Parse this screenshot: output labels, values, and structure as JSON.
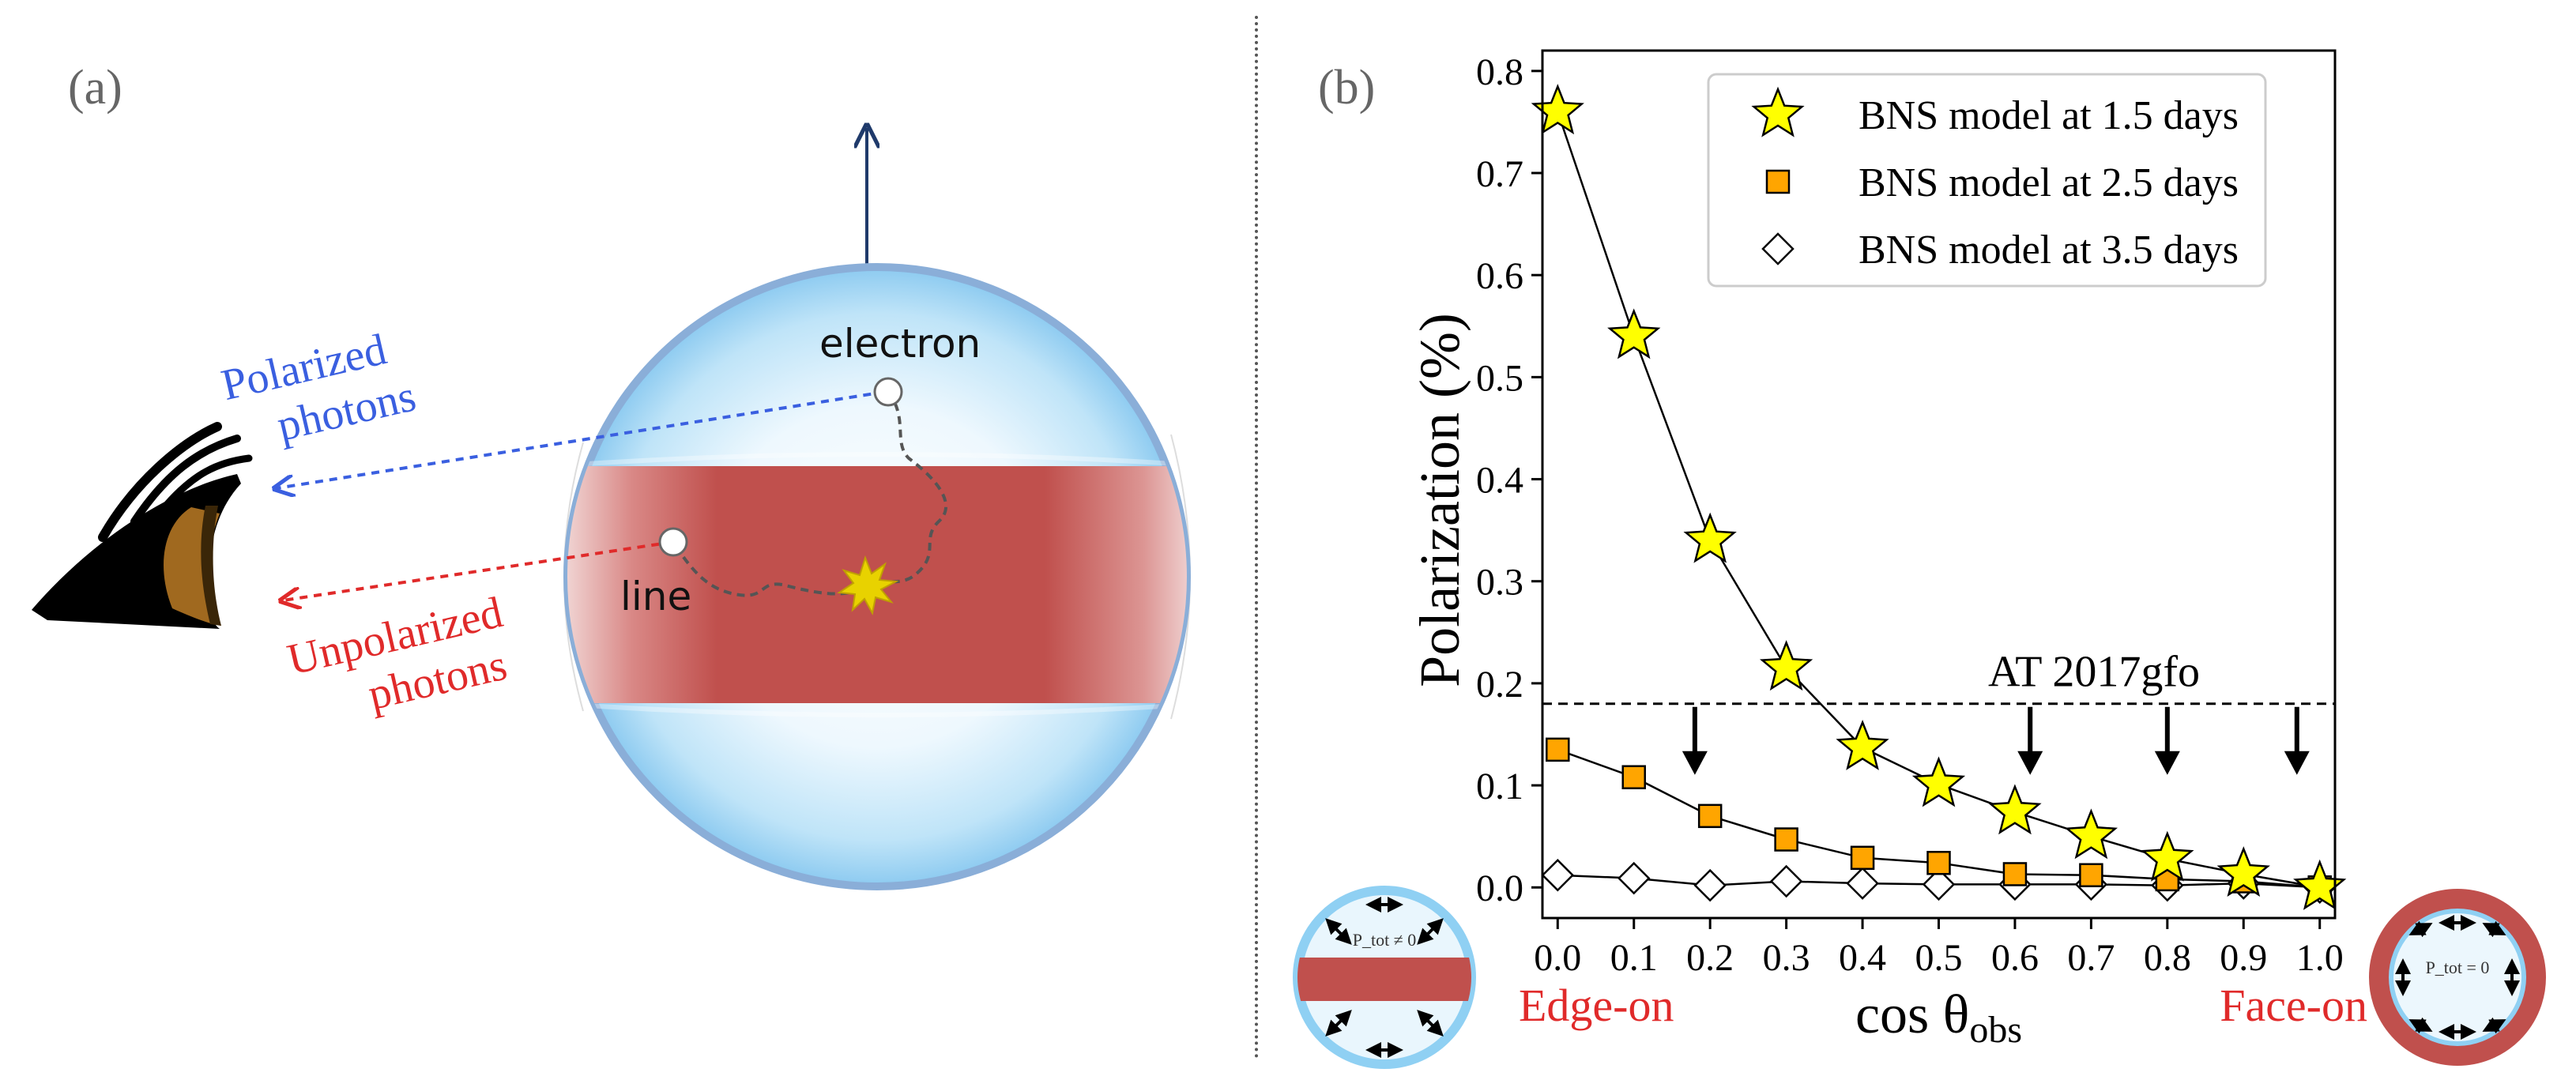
{
  "panel_a": {
    "label": "(a)",
    "electron_label": "electron",
    "line_label": "line",
    "polarized_label_1": "Polarized",
    "polarized_label_2": "photons",
    "unpolarized_label_1": "Unpolarized",
    "unpolarized_label_2": "photons",
    "colors": {
      "polarized": "#3a5fe0",
      "unpolarized": "#e02a2a",
      "band": "#c0504d",
      "sphere": "#a8d8f4"
    }
  },
  "panel_b": {
    "label": "(b)",
    "edge_on_label": "Edge-on",
    "face_on_label": "Face-on",
    "edge_inset_text": "P_tot ≠ 0",
    "face_inset_text": "P_tot = 0",
    "annotation_color": "#e02a2a"
  },
  "chart_data": {
    "type": "line",
    "xlabel_main": "cos θ",
    "xlabel_sub": "obs",
    "ylabel": "Polarization (%)",
    "xlim": [
      -0.02,
      1.02
    ],
    "ylim": [
      -0.03,
      0.82
    ],
    "x_ticks": [
      "0.0",
      "0.1",
      "0.2",
      "0.3",
      "0.4",
      "0.5",
      "0.6",
      "0.7",
      "0.8",
      "0.9",
      "1.0"
    ],
    "y_ticks": [
      "0.0",
      "0.1",
      "0.2",
      "0.3",
      "0.4",
      "0.5",
      "0.6",
      "0.7",
      "0.8"
    ],
    "legend_position": "top-right",
    "series": [
      {
        "name": "BNS model at 1.5 days",
        "marker": "star",
        "color": "#ffff00",
        "x": [
          0.0,
          0.1,
          0.2,
          0.3,
          0.4,
          0.5,
          0.6,
          0.7,
          0.8,
          0.9,
          1.0
        ],
        "y": [
          0.76,
          0.54,
          0.34,
          0.215,
          0.137,
          0.101,
          0.074,
          0.05,
          0.028,
          0.013,
          0.0
        ]
      },
      {
        "name": "BNS model at 2.5 days",
        "marker": "square",
        "color": "#ffa500",
        "x": [
          0.0,
          0.1,
          0.2,
          0.3,
          0.4,
          0.5,
          0.6,
          0.7,
          0.8,
          0.9,
          1.0
        ],
        "y": [
          0.135,
          0.108,
          0.07,
          0.047,
          0.029,
          0.024,
          0.013,
          0.012,
          0.008,
          0.006,
          0.0
        ]
      },
      {
        "name": "BNS model at 3.5 days",
        "marker": "diamond",
        "color": "#ffffff",
        "x": [
          0.0,
          0.1,
          0.2,
          0.3,
          0.4,
          0.5,
          0.6,
          0.7,
          0.8,
          0.9,
          1.0
        ],
        "y": [
          0.012,
          0.009,
          0.002,
          0.006,
          0.004,
          0.003,
          0.003,
          0.003,
          0.002,
          0.004,
          0.0
        ]
      }
    ],
    "reference_line": {
      "label": "AT 2017gfo",
      "y": 0.18,
      "style": "dashed"
    },
    "upper_limit_arrows_x": [
      0.18,
      0.62,
      0.8,
      0.97
    ]
  }
}
